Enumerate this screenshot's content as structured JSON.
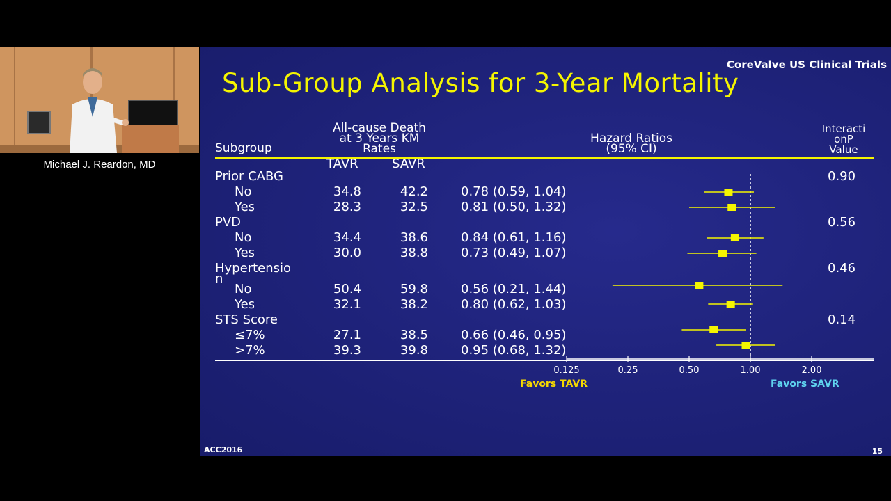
{
  "speaker": {
    "name": "Michael J. Reardon, MD"
  },
  "slide": {
    "brand": "CoreValve US Clinical Trials",
    "title": "Sub-Group Analysis for 3-Year Mortality",
    "headers": {
      "subgroup": "Subgroup",
      "rates_line1": "All-cause Death",
      "rates_line2": "at 3 Years KM",
      "rates_line3": "Rates",
      "tavr": "TAVR",
      "savr": "SAVR",
      "hr_line1": "Hazard Ratios",
      "hr_line2": "(95% CI)",
      "p_line1": "Interacti",
      "p_line2": "onP",
      "p_line3": "Value"
    },
    "groups": [
      {
        "label": "Prior CABG",
        "p": "0.90",
        "rows": [
          {
            "label": "No",
            "tavr": "34.8",
            "savr": "42.2",
            "hr_text": "0.78 (0.59, 1.04)",
            "hr": 0.78,
            "lo": 0.59,
            "hi": 1.04
          },
          {
            "label": "Yes",
            "tavr": "28.3",
            "savr": "32.5",
            "hr_text": "0.81 (0.50, 1.32)",
            "hr": 0.81,
            "lo": 0.5,
            "hi": 1.32
          }
        ]
      },
      {
        "label": "PVD",
        "p": "0.56",
        "rows": [
          {
            "label": "No",
            "tavr": "34.4",
            "savr": "38.6",
            "hr_text": "0.84 (0.61, 1.16)",
            "hr": 0.84,
            "lo": 0.61,
            "hi": 1.16
          },
          {
            "label": "Yes",
            "tavr": "30.0",
            "savr": "38.8",
            "hr_text": "0.73 (0.49, 1.07)",
            "hr": 0.73,
            "lo": 0.49,
            "hi": 1.07
          }
        ]
      },
      {
        "label_line1": "Hypertensio",
        "label_line2": "n",
        "p": "0.46",
        "rows": [
          {
            "label": "No",
            "tavr": "50.4",
            "savr": "59.8",
            "hr_text": "0.56 (0.21, 1.44)",
            "hr": 0.56,
            "lo": 0.21,
            "hi": 1.44
          },
          {
            "label": "Yes",
            "tavr": "32.1",
            "savr": "38.2",
            "hr_text": "0.80 (0.62, 1.03)",
            "hr": 0.8,
            "lo": 0.62,
            "hi": 1.03
          }
        ]
      },
      {
        "label": "STS Score",
        "p": "0.14",
        "rows": [
          {
            "label": "≤7%",
            "tavr": "27.1",
            "savr": "38.5",
            "hr_text": "0.66 (0.46, 0.95)",
            "hr": 0.66,
            "lo": 0.46,
            "hi": 0.95
          },
          {
            "label": ">7%",
            "tavr": "39.3",
            "savr": "39.8",
            "hr_text": "0.95 (0.68, 1.32)",
            "hr": 0.95,
            "lo": 0.68,
            "hi": 1.32
          }
        ]
      }
    ],
    "axis_ticks": [
      "0.125",
      "0.25",
      "0.50",
      "1.00",
      "2.00"
    ],
    "favors_left": "Favors  TAVR",
    "favors_right": "Favors SAVR",
    "footer_left": "ACC2016",
    "footer_right": "15",
    "colors": {
      "title": "#f5f500",
      "marker": "#f5f500",
      "favors_left": "#f5d800",
      "favors_right": "#5fd3ee",
      "background": "#1e2279"
    }
  }
}
